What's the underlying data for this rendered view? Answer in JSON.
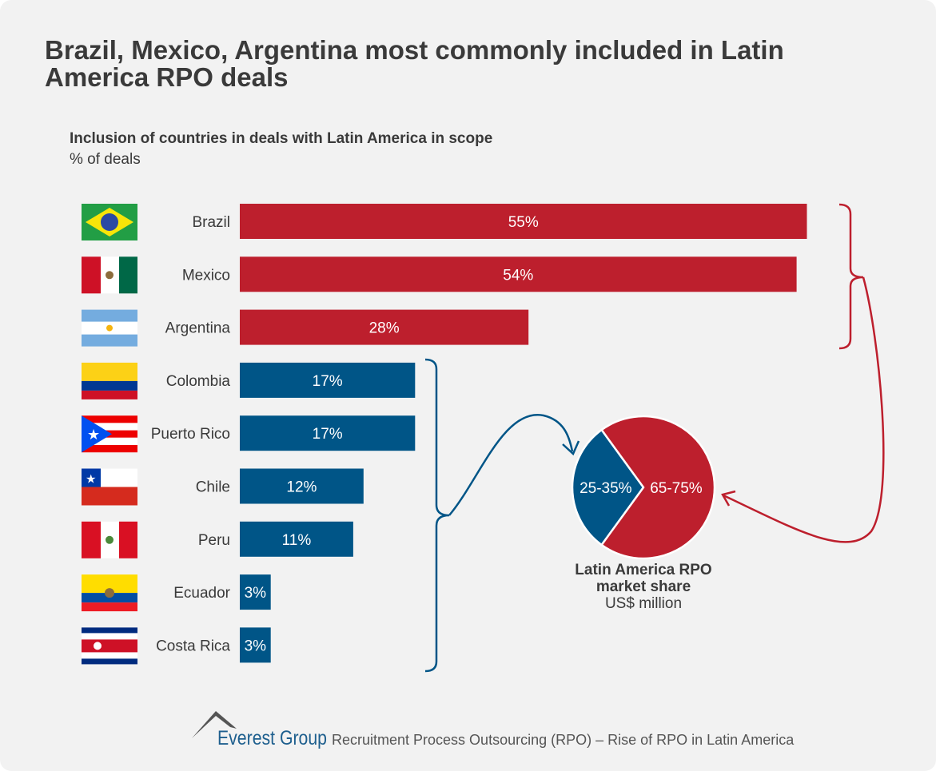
{
  "title": "Brazil, Mexico, Argentina most commonly included in Latin America RPO deals",
  "chart_data": [
    {
      "type": "bar",
      "orientation": "horizontal",
      "title": "Inclusion of countries in deals with Latin America in scope",
      "unit": "% of deals",
      "categories": [
        "Brazil",
        "Mexico",
        "Argentina",
        "Colombia",
        "Puerto Rico",
        "Chile",
        "Peru",
        "Ecuador",
        "Costa Rica"
      ],
      "values": [
        55,
        54,
        28,
        17,
        17,
        12,
        11,
        3,
        3
      ],
      "labels": [
        "55%",
        "54%",
        "28%",
        "17%",
        "17%",
        "12%",
        "11%",
        "3%",
        "3%"
      ],
      "colors": [
        "#bd1f2d",
        "#bd1f2d",
        "#bd1f2d",
        "#005587",
        "#005587",
        "#005587",
        "#005587",
        "#005587",
        "#005587"
      ]
    },
    {
      "type": "pie",
      "title": "Latin America RPO market share",
      "subtitle": "US$ million",
      "slices": [
        {
          "label": "25-35%",
          "value": 30,
          "color": "#005587"
        },
        {
          "label": "65-75%",
          "value": 70,
          "color": "#bd1f2d"
        }
      ]
    }
  ],
  "footer": {
    "logo": "Everest Group",
    "text": "Recruitment Process Outsourcing (RPO) – Rise of RPO in Latin America"
  }
}
